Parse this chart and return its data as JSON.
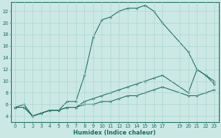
{
  "xlabel": "Humidex (Indice chaleur)",
  "bg_color": "#cce8e4",
  "line_color": "#1a6b5e",
  "grid_color": "#a8d4cc",
  "xlim": [
    -0.5,
    23.5
  ],
  "ylim": [
    3.0,
    23.5
  ],
  "xticks": [
    0,
    1,
    2,
    3,
    4,
    5,
    6,
    7,
    8,
    9,
    10,
    11,
    12,
    13,
    14,
    15,
    16,
    17,
    19,
    20,
    21,
    22,
    23
  ],
  "yticks": [
    4,
    6,
    8,
    10,
    12,
    14,
    16,
    18,
    20,
    22
  ],
  "line1_x": [
    0,
    1,
    2,
    3,
    4,
    5,
    6,
    7,
    8,
    9,
    10,
    11,
    12,
    13,
    14,
    15,
    16,
    17,
    20,
    21,
    22,
    23
  ],
  "line1_y": [
    5.5,
    6.0,
    4.0,
    4.5,
    5.0,
    5.0,
    6.5,
    6.5,
    11.0,
    17.5,
    20.5,
    21.0,
    22.0,
    22.5,
    22.5,
    23.0,
    22.0,
    20.0,
    15.0,
    12.0,
    11.0,
    9.5
  ],
  "line2_x": [
    0,
    1,
    2,
    3,
    4,
    5,
    6,
    7,
    8,
    9,
    10,
    11,
    12,
    13,
    14,
    15,
    16,
    17,
    20,
    21,
    22,
    23
  ],
  "line2_y": [
    5.5,
    5.5,
    4.0,
    4.5,
    5.0,
    5.0,
    5.5,
    5.5,
    6.5,
    7.0,
    7.5,
    8.0,
    8.5,
    9.0,
    9.5,
    10.0,
    10.5,
    11.0,
    8.0,
    12.0,
    11.0,
    10.0
  ],
  "line3_x": [
    0,
    1,
    2,
    3,
    4,
    5,
    6,
    7,
    8,
    9,
    10,
    11,
    12,
    13,
    14,
    15,
    16,
    17,
    20,
    21,
    22,
    23
  ],
  "line3_y": [
    5.5,
    5.5,
    4.0,
    4.5,
    5.0,
    5.0,
    5.5,
    5.5,
    6.0,
    6.0,
    6.5,
    6.5,
    7.0,
    7.5,
    7.5,
    8.0,
    8.5,
    9.0,
    7.5,
    7.5,
    8.0,
    8.5
  ]
}
